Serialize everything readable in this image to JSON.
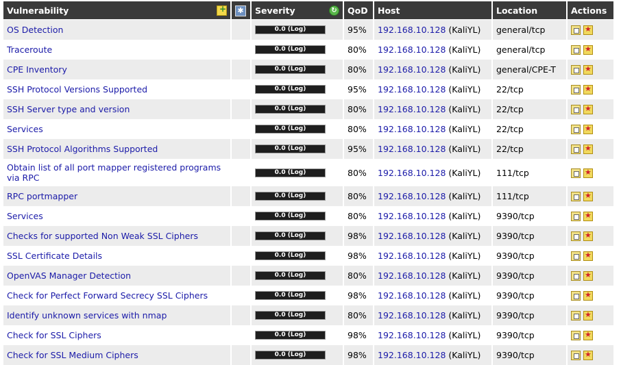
{
  "header": {
    "vulnerability": "Vulnerability",
    "severity": "Severity",
    "qod": "QoD",
    "host": "Host",
    "location": "Location",
    "actions": "Actions",
    "icons": {
      "add": "add-filter-icon",
      "puzzle": "plugin-icon",
      "refresh": "refresh-icon"
    }
  },
  "rows": [
    {
      "vuln": "OS Detection",
      "severity": "0.0 (Log)",
      "qod": "95%",
      "host_ip": "192.168.10.128",
      "host_name": "(KaliYL)",
      "location": "general/tcp"
    },
    {
      "vuln": "Traceroute",
      "severity": "0.0 (Log)",
      "qod": "80%",
      "host_ip": "192.168.10.128",
      "host_name": "(KaliYL)",
      "location": "general/tcp"
    },
    {
      "vuln": "CPE Inventory",
      "severity": "0.0 (Log)",
      "qod": "80%",
      "host_ip": "192.168.10.128",
      "host_name": "(KaliYL)",
      "location": "general/CPE-T"
    },
    {
      "vuln": "SSH Protocol Versions Supported",
      "severity": "0.0 (Log)",
      "qod": "95%",
      "host_ip": "192.168.10.128",
      "host_name": "(KaliYL)",
      "location": "22/tcp"
    },
    {
      "vuln": "SSH Server type and version",
      "severity": "0.0 (Log)",
      "qod": "80%",
      "host_ip": "192.168.10.128",
      "host_name": "(KaliYL)",
      "location": "22/tcp"
    },
    {
      "vuln": "Services",
      "severity": "0.0 (Log)",
      "qod": "80%",
      "host_ip": "192.168.10.128",
      "host_name": "(KaliYL)",
      "location": "22/tcp"
    },
    {
      "vuln": "SSH Protocol Algorithms Supported",
      "severity": "0.0 (Log)",
      "qod": "95%",
      "host_ip": "192.168.10.128",
      "host_name": "(KaliYL)",
      "location": "22/tcp"
    },
    {
      "vuln": "Obtain list of all port mapper registered programs via RPC",
      "severity": "0.0 (Log)",
      "qod": "80%",
      "host_ip": "192.168.10.128",
      "host_name": "(KaliYL)",
      "location": "111/tcp"
    },
    {
      "vuln": "RPC portmapper",
      "severity": "0.0 (Log)",
      "qod": "80%",
      "host_ip": "192.168.10.128",
      "host_name": "(KaliYL)",
      "location": "111/tcp"
    },
    {
      "vuln": "Services",
      "severity": "0.0 (Log)",
      "qod": "80%",
      "host_ip": "192.168.10.128",
      "host_name": "(KaliYL)",
      "location": "9390/tcp"
    },
    {
      "vuln": "Checks for supported Non Weak SSL Ciphers",
      "severity": "0.0 (Log)",
      "qod": "98%",
      "host_ip": "192.168.10.128",
      "host_name": "(KaliYL)",
      "location": "9390/tcp"
    },
    {
      "vuln": "SSL Certificate Details",
      "severity": "0.0 (Log)",
      "qod": "98%",
      "host_ip": "192.168.10.128",
      "host_name": "(KaliYL)",
      "location": "9390/tcp"
    },
    {
      "vuln": "OpenVAS Manager Detection",
      "severity": "0.0 (Log)",
      "qod": "80%",
      "host_ip": "192.168.10.128",
      "host_name": "(KaliYL)",
      "location": "9390/tcp"
    },
    {
      "vuln": "Check for Perfect Forward Secrecy SSL Ciphers",
      "severity": "0.0 (Log)",
      "qod": "98%",
      "host_ip": "192.168.10.128",
      "host_name": "(KaliYL)",
      "location": "9390/tcp"
    },
    {
      "vuln": "Identify unknown services with nmap",
      "severity": "0.0 (Log)",
      "qod": "80%",
      "host_ip": "192.168.10.128",
      "host_name": "(KaliYL)",
      "location": "9390/tcp"
    },
    {
      "vuln": "Check for SSL Ciphers",
      "severity": "0.0 (Log)",
      "qod": "98%",
      "host_ip": "192.168.10.128",
      "host_name": "(KaliYL)",
      "location": "9390/tcp"
    },
    {
      "vuln": "Check for SSL Medium Ciphers",
      "severity": "0.0 (Log)",
      "qod": "98%",
      "host_ip": "192.168.10.128",
      "host_name": "(KaliYL)",
      "location": "9390/tcp"
    }
  ],
  "row_icons": {
    "details": "details-icon",
    "override": "override-icon"
  },
  "colors": {
    "header_bg": "#3a3a3a",
    "link": "#1a1aa8",
    "row_alt": "#ececec",
    "severity_bar": "#1e1e1e"
  }
}
